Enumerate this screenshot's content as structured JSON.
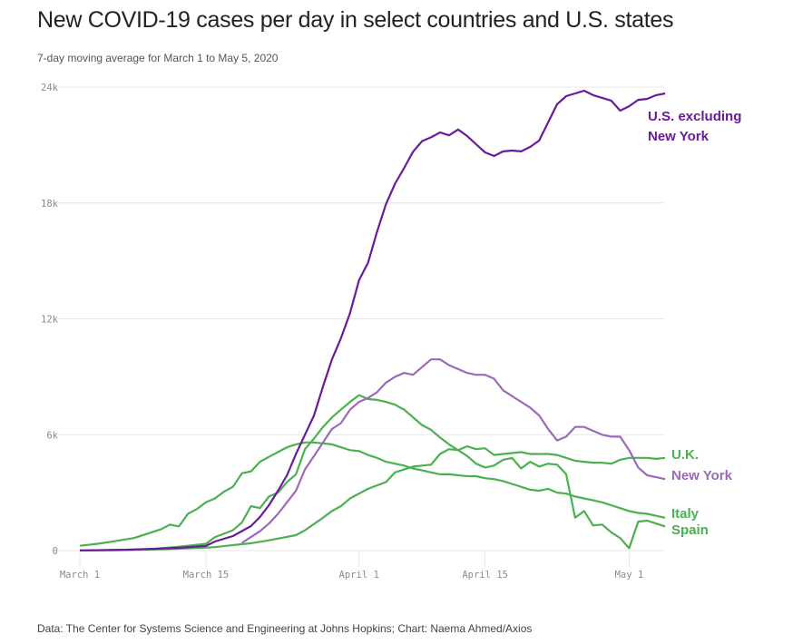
{
  "header": {
    "title": "New COVID-19 cases per day in select countries and U.S. states",
    "subtitle": "7-day moving average for March 1 to May 5, 2020"
  },
  "footer": {
    "source": "Data: The Center for Systems Science and Engineering at Johns Hopkins; Chart: Naema Ahmed/Axios"
  },
  "colors": {
    "us_excluding_ny": "#6a1b9a",
    "new_york": "#9c69b8",
    "green_series": "#4caf50",
    "gridline": "#e6e6e6",
    "tick_text": "#8a8a8a"
  },
  "chart_data": {
    "type": "line",
    "title": "New COVID-19 cases per day in select countries and U.S. states",
    "subtitle": "7-day moving average for March 1 to May 5, 2020",
    "xlabel": "",
    "ylabel": "",
    "x_start": "2020-03-01",
    "x_end": "2020-05-05",
    "x_unit": "day index from March 1 (0 = March 1)",
    "x_ticks": [
      {
        "label": "March 1",
        "day": 0
      },
      {
        "label": "March 15",
        "day": 14
      },
      {
        "label": "April 1",
        "day": 31
      },
      {
        "label": "April 15",
        "day": 45
      },
      {
        "label": "May 1",
        "day": 61
      }
    ],
    "y_ticks": [
      {
        "label": "0",
        "value": 0
      },
      {
        "label": "6k",
        "value": 6000
      },
      {
        "label": "12k",
        "value": 12000
      },
      {
        "label": "18k",
        "value": 18000
      },
      {
        "label": "24k",
        "value": 24000
      }
    ],
    "ylim": [
      0,
      24000
    ],
    "xlim": [
      0,
      65
    ],
    "grid": "horizontal",
    "legend": "direct labels at right end of lines",
    "series": [
      {
        "key": "us_excluding_ny",
        "name": "U.S. excluding New York",
        "label_lines": [
          "U.S. excluding",
          "New York"
        ],
        "days": [
          0,
          5,
          8,
          11,
          14,
          15,
          17,
          19,
          20,
          21,
          22,
          23,
          24,
          25,
          26,
          27,
          28,
          29,
          30,
          31,
          32,
          33,
          34,
          35,
          36,
          37,
          38,
          39,
          40,
          41,
          42,
          43,
          44,
          45,
          46,
          47,
          48,
          49,
          50,
          51,
          52,
          53,
          54,
          55,
          56,
          57,
          58,
          59,
          60,
          61,
          62,
          63,
          64,
          65
        ],
        "values": [
          10,
          40,
          90,
          140,
          240,
          470,
          750,
          1270,
          1740,
          2350,
          3100,
          3900,
          5000,
          6000,
          7000,
          8500,
          9900,
          11000,
          12300,
          14000,
          14900,
          16500,
          17950,
          19000,
          19800,
          20650,
          21200,
          21400,
          21650,
          21500,
          21800,
          21470,
          21040,
          20620,
          20430,
          20670,
          20710,
          20670,
          20900,
          21230,
          22170,
          23110,
          23530,
          23670,
          23810,
          23580,
          23440,
          23300,
          22780,
          23010,
          23340,
          23390,
          23580,
          23670
        ]
      },
      {
        "key": "new_york",
        "name": "New York",
        "label_lines": [
          "New York"
        ],
        "days": [
          18,
          19,
          20,
          21,
          22,
          23,
          24,
          25,
          26,
          27,
          28,
          29,
          30,
          31,
          32,
          33,
          34,
          35,
          36,
          37,
          38,
          39,
          40,
          41,
          42,
          43,
          44,
          45,
          46,
          47,
          48,
          49,
          50,
          51,
          52,
          53,
          54,
          55,
          56,
          57,
          58,
          59,
          60,
          61,
          62,
          63,
          64,
          65
        ],
        "values": [
          400,
          700,
          1000,
          1400,
          1900,
          2500,
          3100,
          4200,
          4900,
          5600,
          6300,
          6600,
          7300,
          7700,
          7900,
          8200,
          8700,
          9000,
          9200,
          9100,
          9500,
          9900,
          9900,
          9600,
          9400,
          9200,
          9100,
          9100,
          8900,
          8300,
          8000,
          7700,
          7400,
          7000,
          6300,
          5700,
          5900,
          6400,
          6400,
          6200,
          6000,
          5900,
          5900,
          5200,
          4300,
          3900,
          3800,
          3700
        ]
      },
      {
        "key": "uk",
        "name": "U.K.",
        "label_lines": [
          "U.K."
        ],
        "days": [
          0,
          5,
          8,
          11,
          14,
          15,
          17,
          19,
          21,
          22,
          24,
          25,
          27,
          28,
          29,
          30,
          31,
          32,
          34,
          35,
          36,
          37,
          38,
          39,
          40,
          41,
          42,
          43,
          44,
          45,
          46,
          47,
          48,
          49,
          50,
          51,
          52,
          53,
          54,
          55,
          56,
          57,
          58,
          59,
          60,
          61,
          62,
          63,
          64,
          65
        ],
        "values": [
          10,
          30,
          50,
          100,
          150,
          180,
          280,
          380,
          530,
          620,
          800,
          1050,
          1700,
          2050,
          2300,
          2700,
          2950,
          3200,
          3550,
          4050,
          4200,
          4350,
          4400,
          4450,
          5000,
          5250,
          5200,
          5400,
          5250,
          5300,
          4950,
          5000,
          5050,
          5100,
          5000,
          5000,
          5000,
          4950,
          4800,
          4650,
          4600,
          4550,
          4550,
          4500,
          4700,
          4800,
          4800,
          4800,
          4750,
          4800
        ]
      },
      {
        "key": "spain",
        "name": "Spain",
        "label_lines": [
          "Spain"
        ],
        "days": [
          0,
          5,
          8,
          11,
          13,
          14,
          15,
          17,
          18,
          19,
          20,
          21,
          22,
          23,
          24,
          25,
          26,
          27,
          28,
          29,
          30,
          31,
          32,
          33,
          34,
          35,
          36,
          37,
          38,
          39,
          40,
          41,
          42,
          43,
          44,
          45,
          46,
          47,
          48,
          49,
          50,
          51,
          52,
          53,
          54,
          55,
          56,
          57,
          58,
          59,
          60,
          61,
          62,
          63,
          64,
          65
        ],
        "values": [
          10,
          30,
          80,
          200,
          300,
          350,
          700,
          1050,
          1450,
          2300,
          2200,
          2800,
          3000,
          3550,
          3950,
          5250,
          5800,
          6400,
          6900,
          7300,
          7700,
          8050,
          7850,
          7800,
          7700,
          7550,
          7300,
          6900,
          6500,
          6250,
          5850,
          5500,
          5200,
          4900,
          4500,
          4300,
          4400,
          4700,
          4800,
          4250,
          4600,
          4350,
          4500,
          4450,
          3950,
          1700,
          2050,
          1300,
          1350,
          950,
          650,
          120,
          1500,
          1550,
          1400,
          1250
        ]
      },
      {
        "key": "italy",
        "name": "Italy",
        "label_lines": [
          "Italy"
        ],
        "days": [
          0,
          2,
          4,
          6,
          8,
          9,
          10,
          11,
          12,
          13,
          14,
          15,
          16,
          17,
          18,
          19,
          20,
          21,
          22,
          23,
          24,
          25,
          26,
          27,
          28,
          29,
          30,
          31,
          32,
          33,
          34,
          35,
          36,
          37,
          38,
          39,
          40,
          41,
          42,
          43,
          44,
          45,
          46,
          47,
          48,
          49,
          50,
          51,
          52,
          53,
          54,
          55,
          56,
          57,
          58,
          59,
          60,
          61,
          62,
          63,
          64,
          65
        ],
        "values": [
          250,
          350,
          500,
          650,
          950,
          1100,
          1350,
          1250,
          1900,
          2150,
          2500,
          2700,
          3050,
          3300,
          4000,
          4100,
          4600,
          4850,
          5100,
          5350,
          5500,
          5600,
          5600,
          5550,
          5500,
          5350,
          5200,
          5150,
          4950,
          4800,
          4600,
          4500,
          4400,
          4250,
          4150,
          4050,
          3950,
          3950,
          3900,
          3850,
          3850,
          3750,
          3700,
          3600,
          3450,
          3300,
          3150,
          3100,
          3200,
          3000,
          2950,
          2800,
          2700,
          2600,
          2500,
          2350,
          2200,
          2050,
          1950,
          1900,
          1800,
          1700
        ]
      }
    ]
  }
}
